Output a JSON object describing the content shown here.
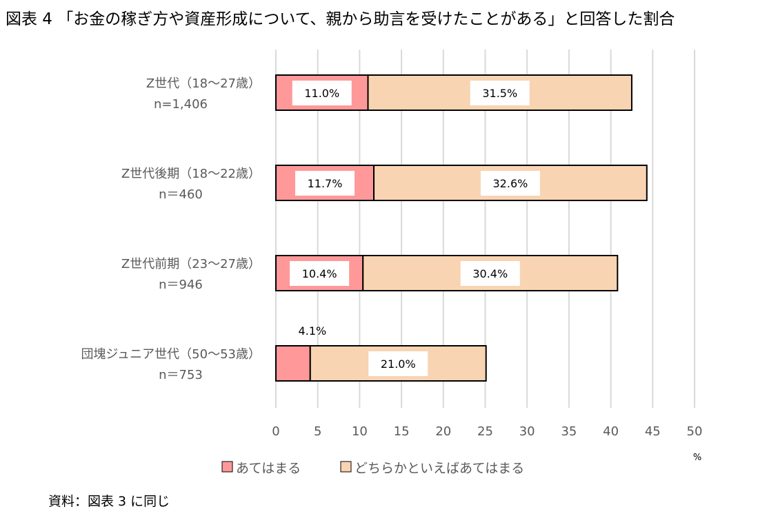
{
  "chart_data": {
    "type": "bar",
    "orientation": "horizontal",
    "stacked": true,
    "title": "図表 4 「お金の稼ぎ方や資産形成について、親から助言を受けたことがある」と回答した割合",
    "categories": [
      {
        "label": "Z世代（18～27歳）",
        "n": "n=1,406"
      },
      {
        "label": "Z世代後期（18～22歳）",
        "n": "n＝460"
      },
      {
        "label": "Z世代前期（23～27歳）",
        "n": "n＝946"
      },
      {
        "label": "団塊ジュニア世代（50～53歳）",
        "n": "n＝753"
      }
    ],
    "series": [
      {
        "name": "あてはまる",
        "color": "#ff9999",
        "values": [
          11.0,
          11.7,
          10.4,
          4.1
        ],
        "labels": [
          "11.0%",
          "11.7%",
          "10.4%",
          "4.1%"
        ]
      },
      {
        "name": "どちらかといえばあてはまる",
        "color": "#f8d4b2",
        "values": [
          31.5,
          32.6,
          30.4,
          21.0
        ],
        "labels": [
          "31.5%",
          "32.6%",
          "30.4%",
          "21.0%"
        ]
      }
    ],
    "xlim": [
      0,
      50
    ],
    "xticks": [
      "0",
      "5",
      "10",
      "15",
      "20",
      "25",
      "30",
      "35",
      "40",
      "45",
      "50"
    ],
    "xunit": "%",
    "grid": "vertical",
    "legend": "bottom"
  },
  "source": "資料：図表 3 に同じ"
}
